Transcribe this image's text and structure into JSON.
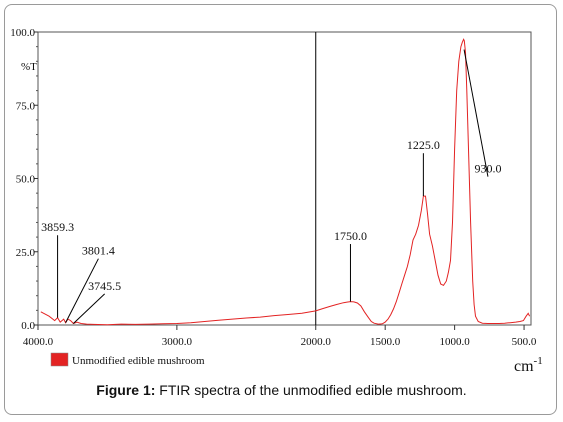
{
  "chart_data": {
    "type": "line",
    "xlabel": "cm",
    "xlabel_sup": "-1",
    "ylabel": "%T",
    "xlim": [
      4000,
      450
    ],
    "ylim": [
      0,
      100
    ],
    "x_reversed": true,
    "x_ticks": [
      "4000.0",
      "3000.0",
      "2000.0",
      "1500.0",
      "1000.0",
      "500.0"
    ],
    "x_tick_values": [
      4000,
      3000,
      2000,
      1500,
      1000,
      500
    ],
    "y_ticks": [
      "100.0",
      "75.0",
      "50.0",
      "25.0",
      "0.0"
    ],
    "y_tick_values": [
      100,
      75,
      50,
      25,
      0
    ],
    "series": [
      {
        "name": "Unmodified edible mushroom",
        "color": "#e32323",
        "x": [
          3980,
          3920,
          3880,
          3859,
          3840,
          3815,
          3801,
          3785,
          3765,
          3745,
          3720,
          3690,
          3650,
          3600,
          3500,
          3400,
          3300,
          3200,
          3100,
          3000,
          2900,
          2800,
          2700,
          2600,
          2500,
          2400,
          2300,
          2200,
          2100,
          2000,
          1950,
          1900,
          1850,
          1800,
          1775,
          1750,
          1725,
          1700,
          1675,
          1650,
          1620,
          1600,
          1580,
          1550,
          1520,
          1500,
          1480,
          1460,
          1440,
          1420,
          1400,
          1380,
          1360,
          1340,
          1320,
          1300,
          1280,
          1260,
          1240,
          1225,
          1210,
          1195,
          1180,
          1160,
          1140,
          1120,
          1100,
          1080,
          1060,
          1045,
          1030,
          1015,
          1000,
          985,
          970,
          955,
          945,
          935,
          930,
          922,
          912,
          900,
          885,
          870,
          860,
          850,
          830,
          800,
          760,
          720,
          680,
          640,
          600,
          560,
          530,
          505,
          485,
          470,
          460
        ],
        "y": [
          4.5,
          3,
          1.5,
          2.5,
          1,
          2,
          0.8,
          2,
          1.5,
          0.5,
          1,
          0.5,
          0.3,
          0.2,
          0.1,
          0.3,
          0.2,
          0.3,
          0.4,
          0.5,
          0.8,
          1.2,
          1.6,
          2,
          2.4,
          2.7,
          3.2,
          3.6,
          4,
          4.8,
          5.6,
          6.3,
          7,
          7.6,
          7.8,
          8,
          7.9,
          7.5,
          6.5,
          4.5,
          2.5,
          1.2,
          0.6,
          0.3,
          0.4,
          1,
          2,
          3.5,
          5.5,
          8,
          11,
          14,
          17,
          20,
          24,
          29,
          31,
          34,
          39,
          44,
          44,
          38,
          31,
          27,
          22,
          17,
          14,
          13.5,
          15,
          18,
          22,
          35,
          60,
          80,
          90,
          95,
          96.5,
          97.5,
          97,
          93,
          80,
          60,
          35,
          15,
          7,
          3,
          1.2,
          0.6,
          0.5,
          0.5,
          0.5,
          0.6,
          0.8,
          1,
          1.2,
          1.5,
          3,
          4,
          3
        ]
      }
    ],
    "annotations": [
      {
        "label": "930.0",
        "x": 932,
        "y": 94,
        "text_at": [
          760,
          52
        ]
      },
      {
        "label": "1225.0",
        "x": 1225,
        "y": 44,
        "text_at": [
          1225,
          60
        ]
      },
      {
        "label": "1750.0",
        "x": 1750,
        "y": 8,
        "text_at": [
          1750,
          29
        ]
      },
      {
        "label": "3859.3",
        "x": 3859,
        "y": 2.5,
        "text_at": [
          3859,
          32
        ]
      },
      {
        "label": "3801.4",
        "x": 3801,
        "y": 0.8,
        "text_at": [
          3565,
          24
        ]
      },
      {
        "label": "3745.5",
        "x": 3745,
        "y": 0.5,
        "text_at": [
          3520,
          12
        ]
      }
    ],
    "legend_placement": "bottom-left",
    "grid": false,
    "vertical_marker_x": 2000
  },
  "caption": {
    "label": "Figure 1:",
    "text": " FTIR spectra of the unmodified edible mushroom."
  }
}
